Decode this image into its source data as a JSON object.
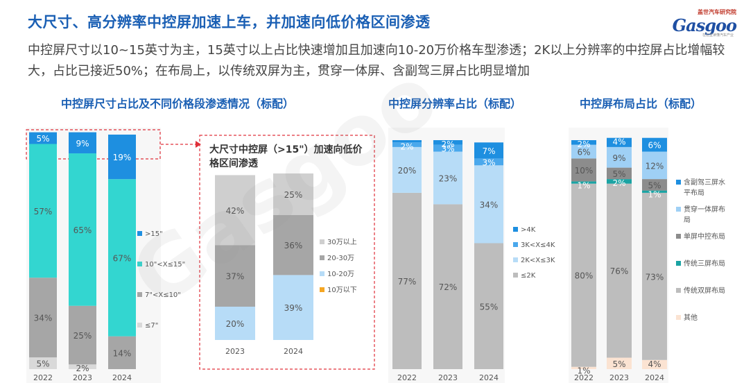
{
  "header": {
    "title": "大尺寸、高分辨率中控屏加速上车，并加速向低价格区间渗透",
    "subtitle": "中控屏尺寸以10~15英寸为主，15英寸以上占比快速增加且加速向10-20万价格车型渗透；2K以上分辨率的中控屏占比增幅较大，占比已接近50%；在布局上，以传统双屏为主，贯穿一体屏、含副驾三屏占比明显增加",
    "logo_top": "盖世汽车研究院",
    "logo_brand": "Gasgoo",
    "logo_tag": "在这里读懂汽车产业"
  },
  "watermark": "Gasgoo",
  "chart_titles": {
    "size": "中控屏尺寸占比及不同价格段渗透情况（标配）",
    "inset": "大尺寸中控屏（>15\"）加速向低价格区间渗透",
    "resolution": "中控屏分辨率占比（标配）",
    "layout": "中控屏布局占比（标配）"
  },
  "chart_data": [
    {
      "id": "size",
      "type": "bar",
      "stacked": true,
      "categories": [
        "2022",
        "2023",
        "2024"
      ],
      "series": [
        {
          "name": "≤7\"",
          "color": "#d9d9d9",
          "values": [
            5,
            2,
            0
          ],
          "labels": [
            "5%",
            "2%",
            ""
          ]
        },
        {
          "name": "7\"<X≤10\"",
          "color": "#a6a6a6",
          "values": [
            34,
            25,
            14
          ],
          "labels": [
            "34%",
            "25%",
            "14%"
          ]
        },
        {
          "name": "10\"<X≤15\"",
          "color": "#33d6d0",
          "values": [
            57,
            65,
            67
          ],
          "labels": [
            "57%",
            "65%",
            "67%"
          ]
        },
        {
          "name": ">15\"",
          "color": "#1e8fe0",
          "values": [
            5,
            9,
            19
          ],
          "labels": [
            "5%",
            "9%",
            "19%"
          ]
        }
      ],
      "legend": "right"
    },
    {
      "id": "inset",
      "type": "bar",
      "stacked": true,
      "categories": [
        "2023",
        "2024"
      ],
      "series": [
        {
          "name": "10万以下",
          "color": "#f5a623",
          "values": [
            0,
            0
          ],
          "labels": [
            "",
            ""
          ]
        },
        {
          "name": "10-20万",
          "color": "#b7dcf7",
          "values": [
            20,
            39
          ],
          "labels": [
            "20%",
            "39%"
          ]
        },
        {
          "name": "20-30万",
          "color": "#a6a6a6",
          "values": [
            37,
            36
          ],
          "labels": [
            "37%",
            "36%"
          ]
        },
        {
          "name": "30万以上",
          "color": "#cfcfcf",
          "values": [
            42,
            25
          ],
          "labels": [
            "42%",
            "25%"
          ]
        }
      ],
      "legend": "right"
    },
    {
      "id": "resolution",
      "type": "bar",
      "stacked": true,
      "categories": [
        "2022",
        "2023",
        "2024"
      ],
      "series": [
        {
          "name": "≤2K",
          "color": "#bdbdbd",
          "values": [
            77,
            72,
            55
          ],
          "labels": [
            "77%",
            "72%",
            "55%"
          ]
        },
        {
          "name": "2K<X≤3K",
          "color": "#b7dcf7",
          "values": [
            20,
            23,
            34
          ],
          "labels": [
            "20%",
            "23%",
            "34%"
          ]
        },
        {
          "name": "3K<X≤4K",
          "color": "#4aa8ec",
          "values": [
            2,
            3,
            3
          ],
          "labels": [
            "2%",
            "3%",
            "3%"
          ]
        },
        {
          "name": ">4K",
          "color": "#1e8fe0",
          "values": [
            1,
            2,
            7
          ],
          "labels": [
            "",
            "2%",
            "7%"
          ]
        }
      ],
      "legend": "right"
    },
    {
      "id": "layout",
      "type": "bar",
      "stacked": true,
      "categories": [
        "2022",
        "2023",
        "2024"
      ],
      "series": [
        {
          "name": "其他",
          "color": "#fbe3d2",
          "values": [
            1,
            5,
            4
          ],
          "labels": [
            "1%",
            "5%",
            "4%"
          ]
        },
        {
          "name": "传统双屏布局",
          "color": "#bdbdbd",
          "values": [
            80,
            76,
            73
          ],
          "labels": [
            "80%",
            "76%",
            "73%"
          ]
        },
        {
          "name": "传统三屏布局",
          "color": "#1aa3a3",
          "values": [
            1,
            2,
            1
          ],
          "labels": [
            "1%",
            "2%",
            "1%"
          ]
        },
        {
          "name": "单屏中控布局",
          "color": "#8c8c8c",
          "values": [
            10,
            5,
            5
          ],
          "labels": [
            "10%",
            "5%",
            "5%"
          ]
        },
        {
          "name": "贯穿一体屏布局",
          "color": "#9fd0f5",
          "values": [
            6,
            9,
            12
          ],
          "labels": [
            "6%",
            "9%",
            "12%"
          ]
        },
        {
          "name": "含副驾三屏水平布局",
          "color": "#1e8fe0",
          "values": [
            2,
            4,
            6
          ],
          "labels": [
            "2%",
            "4%",
            "6%"
          ]
        }
      ],
      "legend": "right"
    }
  ]
}
